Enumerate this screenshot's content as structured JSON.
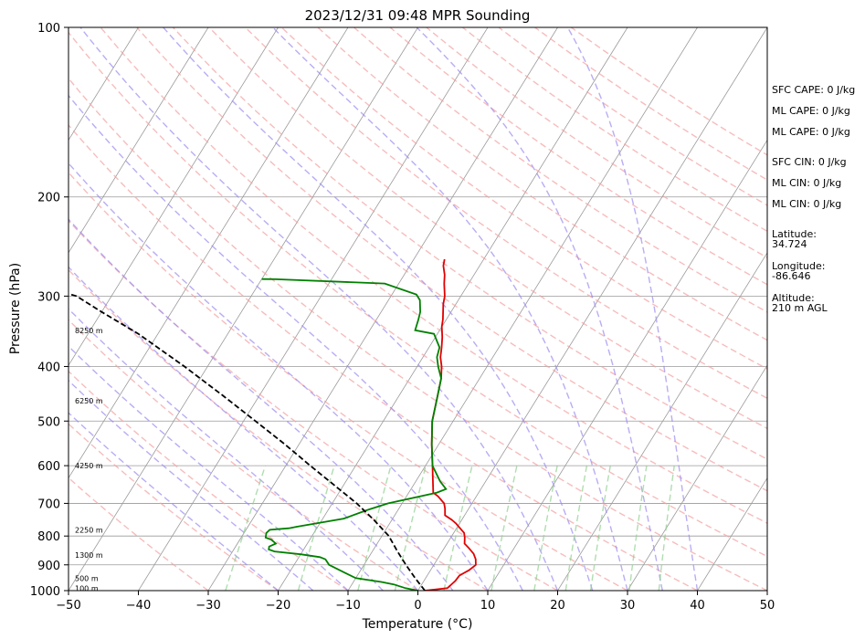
{
  "chart_data": {
    "type": "skew-t",
    "title": "2023/12/31 09:48 MPR Sounding",
    "xlabel": "Temperature (°C)",
    "ylabel": "Pressure (hPa)",
    "xlim": [
      -50,
      50
    ],
    "ylim": [
      1000,
      100
    ],
    "y_scale": "log",
    "grid": true,
    "x_ticks": [
      -50,
      -40,
      -30,
      -20,
      -10,
      0,
      10,
      20,
      30,
      40,
      50
    ],
    "y_ticks": [
      100,
      200,
      300,
      400,
      500,
      600,
      700,
      800,
      900,
      1000
    ],
    "colors": {
      "temperature": "#e00000",
      "dewpoint": "#008000",
      "parcel": "#000000",
      "dry_adiabat": "#f4a0a0",
      "moist_adiabat": "#9a8af0",
      "mixing_ratio": "#8fcf8f",
      "isotherm": "#9a9a9a"
    },
    "series": [
      {
        "key": "temperature",
        "points": [
          [
            1,
            1000
          ],
          [
            4,
            990
          ],
          [
            4.5,
            960
          ],
          [
            4.6,
            940
          ],
          [
            5.5,
            920
          ],
          [
            6,
            900
          ],
          [
            5.5,
            880
          ],
          [
            4.7,
            860
          ],
          [
            3.5,
            840
          ],
          [
            2.5,
            825
          ],
          [
            2,
            805
          ],
          [
            1.5,
            790
          ],
          [
            0.5,
            775
          ],
          [
            -0.5,
            760
          ],
          [
            -1.5,
            748
          ],
          [
            -2.8,
            735
          ],
          [
            -3.4,
            715
          ],
          [
            -4,
            700
          ],
          [
            -5.5,
            680
          ],
          [
            -6.5,
            670
          ],
          [
            -9,
            600
          ],
          [
            -11,
            550
          ],
          [
            -13,
            500
          ],
          [
            -14.5,
            450
          ],
          [
            -15.5,
            420
          ],
          [
            -16.5,
            400
          ],
          [
            -17.5,
            385
          ],
          [
            -18.2,
            370
          ],
          [
            -19,
            355
          ],
          [
            -20,
            340
          ],
          [
            -20.5,
            330
          ],
          [
            -21.8,
            310
          ],
          [
            -22.3,
            300
          ],
          [
            -23.5,
            285
          ],
          [
            -24.2,
            275
          ],
          [
            -25.2,
            265
          ],
          [
            -25.6,
            258
          ]
        ]
      },
      {
        "key": "dewpoint",
        "points": [
          [
            0,
            1000
          ],
          [
            -2,
            990
          ],
          [
            -4,
            975
          ],
          [
            -6,
            965
          ],
          [
            -10,
            950
          ],
          [
            -12,
            930
          ],
          [
            -15,
            900
          ],
          [
            -16,
            880
          ],
          [
            -17,
            872
          ],
          [
            -20,
            862
          ],
          [
            -24,
            852
          ],
          [
            -25,
            845
          ],
          [
            -25.2,
            835
          ],
          [
            -24.5,
            825
          ],
          [
            -25.5,
            812
          ],
          [
            -26.5,
            805
          ],
          [
            -26.8,
            790
          ],
          [
            -26.6,
            780
          ],
          [
            -24,
            775
          ],
          [
            -23,
            770
          ],
          [
            -17,
            745
          ],
          [
            -14.5,
            720
          ],
          [
            -12,
            700
          ],
          [
            -6,
            670
          ],
          [
            -5,
            660
          ],
          [
            -6.5,
            640
          ],
          [
            -9,
            600
          ],
          [
            -11,
            550
          ],
          [
            -13,
            500
          ],
          [
            -14.5,
            450
          ],
          [
            -15.5,
            420
          ],
          [
            -17,
            400
          ],
          [
            -18,
            385
          ],
          [
            -18.5,
            370
          ],
          [
            -20.5,
            350
          ],
          [
            -23.5,
            345
          ],
          [
            -24,
            330
          ],
          [
            -24.4,
            320
          ],
          [
            -25.5,
            305
          ],
          [
            -26.5,
            298
          ],
          [
            -32,
            285
          ],
          [
            -48,
            280
          ],
          [
            -50,
            279.8
          ]
        ]
      },
      {
        "key": "parcel",
        "points": [
          [
            1,
            1000
          ],
          [
            -1.5,
            950
          ],
          [
            -4,
            900
          ],
          [
            -6.5,
            850
          ],
          [
            -9,
            800
          ],
          [
            -12.5,
            750
          ],
          [
            -16.5,
            700
          ],
          [
            -21.3,
            650
          ],
          [
            -26.5,
            600
          ],
          [
            -32,
            550
          ],
          [
            -38.3,
            500
          ],
          [
            -45.3,
            450
          ],
          [
            -53.3,
            400
          ],
          [
            -62.8,
            350
          ],
          [
            -70,
            320
          ],
          [
            -75,
            300
          ],
          [
            -85,
            280
          ]
        ]
      }
    ],
    "height_labels": [
      {
        "text": "100 m",
        "p": 990
      },
      {
        "text": "500 m",
        "p": 950
      },
      {
        "text": "1300 m",
        "p": 865
      },
      {
        "text": "2250 m",
        "p": 780
      },
      {
        "text": "4250 m",
        "p": 600
      },
      {
        "text": "6250 m",
        "p": 460
      },
      {
        "text": "8250 m",
        "p": 345
      }
    ],
    "stats": [
      {
        "key": "sfc-cape",
        "text": "SFC CAPE: 0 J/kg"
      },
      {
        "key": "ml-cape-1",
        "text": "ML CAPE: 0 J/kg"
      },
      {
        "key": "ml-cape-2",
        "text": "ML CAPE: 0 J/kg"
      },
      {
        "key": "sfc-cin",
        "text": "SFC CIN: 0 J/kg"
      },
      {
        "key": "ml-cin-1",
        "text": "ML CIN: 0 J/kg"
      },
      {
        "key": "ml-cin-2",
        "text": "ML CIN: 0 J/kg"
      },
      {
        "key": "latitude",
        "lines": [
          "Latitude:",
          "34.724"
        ]
      },
      {
        "key": "longitude",
        "lines": [
          "Longitude:",
          "-86.646"
        ]
      },
      {
        "key": "altitude",
        "lines": [
          "Altitude:",
          "210 m AGL"
        ]
      }
    ]
  }
}
